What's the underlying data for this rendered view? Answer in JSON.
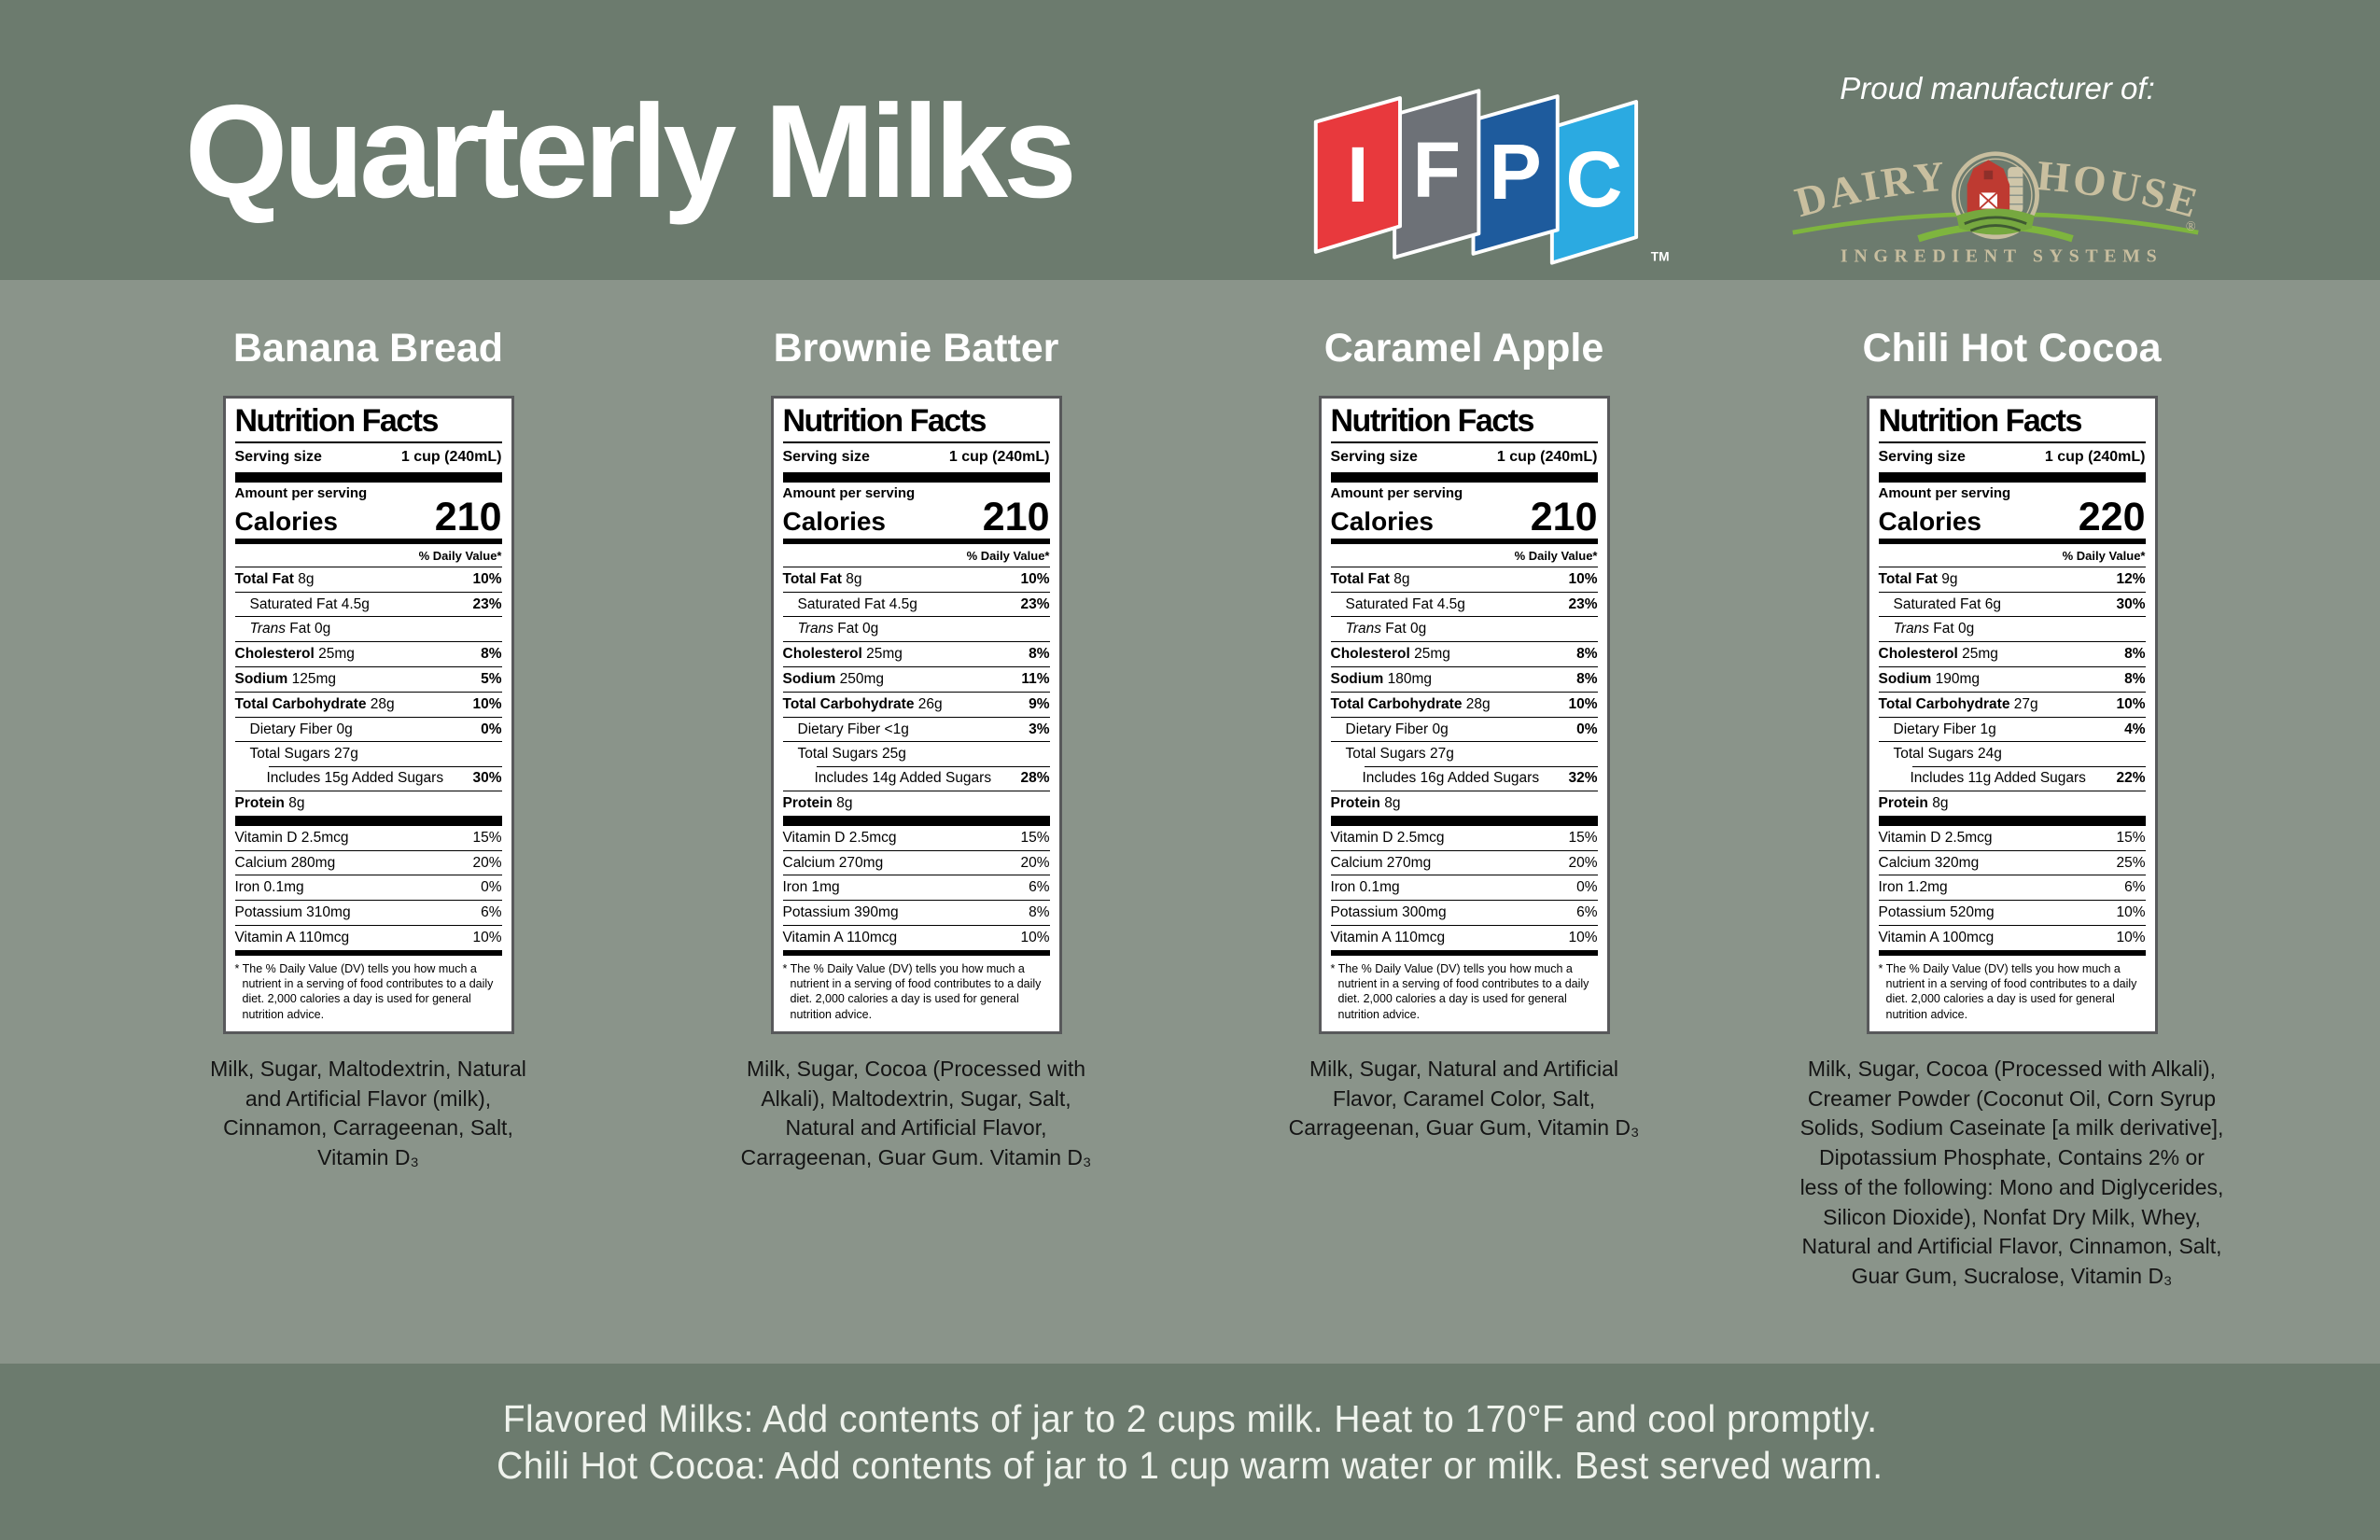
{
  "colors": {
    "header_bg": "#6C7B6E",
    "body_bg": "#8A948A",
    "footer_bg": "#6C7B6E",
    "ifpc_red": "#E8393D",
    "ifpc_gray": "#6D7177",
    "ifpc_blue": "#1E5B9D",
    "ifpc_cyan": "#2BAAE1",
    "dairy_tan": "#C9BF9F",
    "dairy_green": "#7EB53E",
    "barn_red": "#BE3A31"
  },
  "header": {
    "title": "Quarterly Milks",
    "ifpc_letters": [
      "I",
      "F",
      "P",
      "C"
    ],
    "ifpc_tm": "TM",
    "proud_text": "Proud manufacturer of:",
    "dairy_house": {
      "word_left": "DAIRY",
      "word_right": "HOUSE",
      "registered": "®",
      "subtitle": "INGREDIENT SYSTEMS"
    }
  },
  "label_common": {
    "title": "Nutrition Facts",
    "serving_size_label": "Serving size",
    "serving_size_value": "1 cup (240mL)",
    "amount_per_serving": "Amount per serving",
    "calories_label": "Calories",
    "daily_value_header": "% Daily Value*",
    "footnote": "* The % Daily Value (DV) tells you how much a nutrient in a serving of food contributes to a daily diet. 2,000 calories a day is used for general nutrition advice."
  },
  "products": [
    {
      "name": "Banana Bread",
      "calories": "210",
      "nutrients": [
        {
          "label": "Total Fat",
          "amount": "8g",
          "dv": "10%",
          "indent": 0,
          "bold": true,
          "sep": "none"
        },
        {
          "label": "Saturated Fat",
          "amount": "4.5g",
          "dv": "23%",
          "indent": 1,
          "sep": "full"
        },
        {
          "label": "Trans Fat",
          "amount": "0g",
          "dv": "",
          "indent": 1,
          "italic_first": true,
          "sep": "full"
        },
        {
          "label": "Cholesterol",
          "amount": "25mg",
          "dv": "8%",
          "indent": 0,
          "bold": true,
          "sep": "full"
        },
        {
          "label": "Sodium",
          "amount": "125mg",
          "dv": "5%",
          "indent": 0,
          "bold": true,
          "sep": "full"
        },
        {
          "label": "Total Carbohydrate",
          "amount": "28g",
          "dv": "10%",
          "indent": 0,
          "bold": true,
          "sep": "full"
        },
        {
          "label": "Dietary Fiber",
          "amount": "0g",
          "dv": "0%",
          "indent": 1,
          "sep": "full"
        },
        {
          "label": "Total Sugars",
          "amount": "27g",
          "dv": "",
          "indent": 1,
          "sep": "full"
        },
        {
          "label": "Includes 15g Added Sugars",
          "amount": "",
          "dv": "30%",
          "indent": 2,
          "sep": "inset"
        },
        {
          "label": "Protein",
          "amount": "8g",
          "dv": "",
          "indent": 0,
          "bold": true,
          "sep": "full"
        }
      ],
      "vitamins": [
        {
          "label": "Vitamin D",
          "amount": "2.5mcg",
          "dv": "15%"
        },
        {
          "label": "Calcium",
          "amount": "280mg",
          "dv": "20%"
        },
        {
          "label": "Iron",
          "amount": "0.1mg",
          "dv": "0%"
        },
        {
          "label": "Potassium",
          "amount": "310mg",
          "dv": "6%"
        },
        {
          "label": "Vitamin A",
          "amount": "110mcg",
          "dv": "10%"
        }
      ],
      "ingredients": "Milk, Sugar, Maltodextrin, Natural and Artificial Flavor (milk), Cinnamon, Carrageenan, Salt, Vitamin D₃"
    },
    {
      "name": "Brownie Batter",
      "calories": "210",
      "nutrients": [
        {
          "label": "Total Fat",
          "amount": "8g",
          "dv": "10%",
          "indent": 0,
          "bold": true,
          "sep": "none"
        },
        {
          "label": "Saturated Fat",
          "amount": "4.5g",
          "dv": "23%",
          "indent": 1,
          "sep": "full"
        },
        {
          "label": "Trans Fat",
          "amount": "0g",
          "dv": "",
          "indent": 1,
          "italic_first": true,
          "sep": "full"
        },
        {
          "label": "Cholesterol",
          "amount": "25mg",
          "dv": "8%",
          "indent": 0,
          "bold": true,
          "sep": "full"
        },
        {
          "label": "Sodium",
          "amount": "250mg",
          "dv": "11%",
          "indent": 0,
          "bold": true,
          "sep": "full"
        },
        {
          "label": "Total Carbohydrate",
          "amount": "26g",
          "dv": "9%",
          "indent": 0,
          "bold": true,
          "sep": "full"
        },
        {
          "label": "Dietary Fiber",
          "amount": "<1g",
          "dv": "3%",
          "indent": 1,
          "sep": "full"
        },
        {
          "label": "Total Sugars",
          "amount": "25g",
          "dv": "",
          "indent": 1,
          "sep": "full"
        },
        {
          "label": "Includes 14g Added Sugars",
          "amount": "",
          "dv": "28%",
          "indent": 2,
          "sep": "inset"
        },
        {
          "label": "Protein",
          "amount": "8g",
          "dv": "",
          "indent": 0,
          "bold": true,
          "sep": "full"
        }
      ],
      "vitamins": [
        {
          "label": "Vitamin D",
          "amount": "2.5mcg",
          "dv": "15%"
        },
        {
          "label": "Calcium",
          "amount": "270mg",
          "dv": "20%"
        },
        {
          "label": "Iron",
          "amount": "1mg",
          "dv": "6%"
        },
        {
          "label": "Potassium",
          "amount": "390mg",
          "dv": "8%"
        },
        {
          "label": "Vitamin A",
          "amount": "110mcg",
          "dv": "10%"
        }
      ],
      "ingredients": "Milk, Sugar, Cocoa (Processed with Alkali), Maltodextrin, Sugar, Salt, Natural and Artificial Flavor, Carrageenan, Guar Gum. Vitamin D₃"
    },
    {
      "name": "Caramel Apple",
      "calories": "210",
      "nutrients": [
        {
          "label": "Total Fat",
          "amount": "8g",
          "dv": "10%",
          "indent": 0,
          "bold": true,
          "sep": "none"
        },
        {
          "label": "Saturated Fat",
          "amount": "4.5g",
          "dv": "23%",
          "indent": 1,
          "sep": "full"
        },
        {
          "label": "Trans Fat",
          "amount": "0g",
          "dv": "",
          "indent": 1,
          "italic_first": true,
          "sep": "full"
        },
        {
          "label": "Cholesterol",
          "amount": "25mg",
          "dv": "8%",
          "indent": 0,
          "bold": true,
          "sep": "full"
        },
        {
          "label": "Sodium",
          "amount": "180mg",
          "dv": "8%",
          "indent": 0,
          "bold": true,
          "sep": "full"
        },
        {
          "label": "Total Carbohydrate",
          "amount": "28g",
          "dv": "10%",
          "indent": 0,
          "bold": true,
          "sep": "full"
        },
        {
          "label": "Dietary Fiber",
          "amount": "0g",
          "dv": "0%",
          "indent": 1,
          "sep": "full"
        },
        {
          "label": "Total Sugars",
          "amount": "27g",
          "dv": "",
          "indent": 1,
          "sep": "full"
        },
        {
          "label": "Includes 16g Added Sugars",
          "amount": "",
          "dv": "32%",
          "indent": 2,
          "sep": "inset"
        },
        {
          "label": "Protein",
          "amount": "8g",
          "dv": "",
          "indent": 0,
          "bold": true,
          "sep": "full"
        }
      ],
      "vitamins": [
        {
          "label": "Vitamin D",
          "amount": "2.5mcg",
          "dv": "15%"
        },
        {
          "label": "Calcium",
          "amount": "270mg",
          "dv": "20%"
        },
        {
          "label": "Iron",
          "amount": "0.1mg",
          "dv": "0%"
        },
        {
          "label": "Potassium",
          "amount": "300mg",
          "dv": "6%"
        },
        {
          "label": "Vitamin A",
          "amount": "110mcg",
          "dv": "10%"
        }
      ],
      "ingredients": "Milk, Sugar, Natural and Artificial Flavor, Caramel Color, Salt, Carrageenan, Guar Gum, Vitamin D₃"
    },
    {
      "name": "Chili Hot Cocoa",
      "calories": "220",
      "nutrients": [
        {
          "label": "Total Fat",
          "amount": "9g",
          "dv": "12%",
          "indent": 0,
          "bold": true,
          "sep": "none"
        },
        {
          "label": "Saturated Fat",
          "amount": "6g",
          "dv": "30%",
          "indent": 1,
          "sep": "full"
        },
        {
          "label": "Trans Fat",
          "amount": "0g",
          "dv": "",
          "indent": 1,
          "italic_first": true,
          "sep": "full"
        },
        {
          "label": "Cholesterol",
          "amount": "25mg",
          "dv": "8%",
          "indent": 0,
          "bold": true,
          "sep": "full"
        },
        {
          "label": "Sodium",
          "amount": "190mg",
          "dv": "8%",
          "indent": 0,
          "bold": true,
          "sep": "full"
        },
        {
          "label": "Total Carbohydrate",
          "amount": "27g",
          "dv": "10%",
          "indent": 0,
          "bold": true,
          "sep": "full"
        },
        {
          "label": "Dietary Fiber",
          "amount": "1g",
          "dv": "4%",
          "indent": 1,
          "sep": "full"
        },
        {
          "label": "Total Sugars",
          "amount": "24g",
          "dv": "",
          "indent": 1,
          "sep": "full"
        },
        {
          "label": "Includes 11g Added Sugars",
          "amount": "",
          "dv": "22%",
          "indent": 2,
          "sep": "inset"
        },
        {
          "label": "Protein",
          "amount": "8g",
          "dv": "",
          "indent": 0,
          "bold": true,
          "sep": "full"
        }
      ],
      "vitamins": [
        {
          "label": "Vitamin D",
          "amount": "2.5mcg",
          "dv": "15%"
        },
        {
          "label": "Calcium",
          "amount": "320mg",
          "dv": "25%"
        },
        {
          "label": "Iron",
          "amount": "1.2mg",
          "dv": "6%"
        },
        {
          "label": "Potassium",
          "amount": "520mg",
          "dv": "10%"
        },
        {
          "label": "Vitamin A",
          "amount": "100mcg",
          "dv": "10%"
        }
      ],
      "ingredients": "Milk, Sugar, Cocoa (Processed with Alkali), Creamer Powder (Coconut Oil, Corn Syrup Solids, Sodium Caseinate [a milk derivative], Dipotassium Phosphate, Contains 2% or less of the following: Mono and Diglycerides, Silicon Dioxide), Nonfat Dry Milk, Whey, Natural and Artificial Flavor, Cinnamon, Salt, Guar Gum, Sucralose, Vitamin D₃"
    }
  ],
  "footer": {
    "lines": [
      "Flavored Milks: Add contents of jar to 2 cups milk. Heat to 170°F and cool promptly.",
      "Chili Hot Cocoa: Add contents of jar to 1 cup warm water or milk. Best served warm."
    ]
  }
}
